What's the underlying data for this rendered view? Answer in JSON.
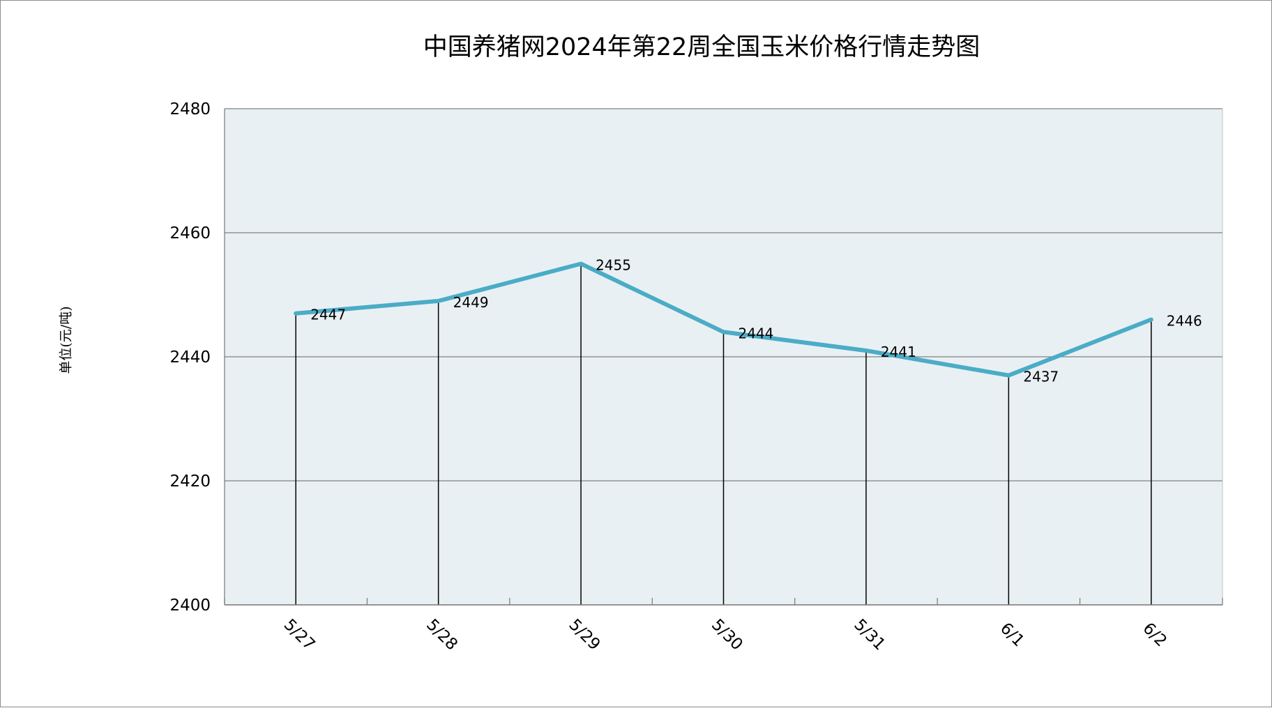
{
  "chart_data": {
    "type": "line",
    "title": "中国养猪网2024年第22周全国玉米价格行情走势图",
    "ylabel": "单位(元/吨)",
    "xlabel": "",
    "categories": [
      "5/27",
      "5/28",
      "5/29",
      "5/30",
      "5/31",
      "6/1",
      "6/2"
    ],
    "series": [
      {
        "values": [
          2447,
          2449,
          2455,
          2444,
          2441,
          2437,
          2446
        ]
      }
    ],
    "ylim": [
      2400,
      2480
    ],
    "yticks": [
      "2400",
      "2420",
      "2440",
      "2460",
      "2480"
    ],
    "data_labels": [
      "2447",
      "2449",
      "2455",
      "2444",
      "2441",
      "2437",
      "2446"
    ],
    "grid": true,
    "drop_lines": true,
    "legend": "none",
    "line_color": "#4bacc6",
    "plot_background": "#e9f0f4"
  }
}
